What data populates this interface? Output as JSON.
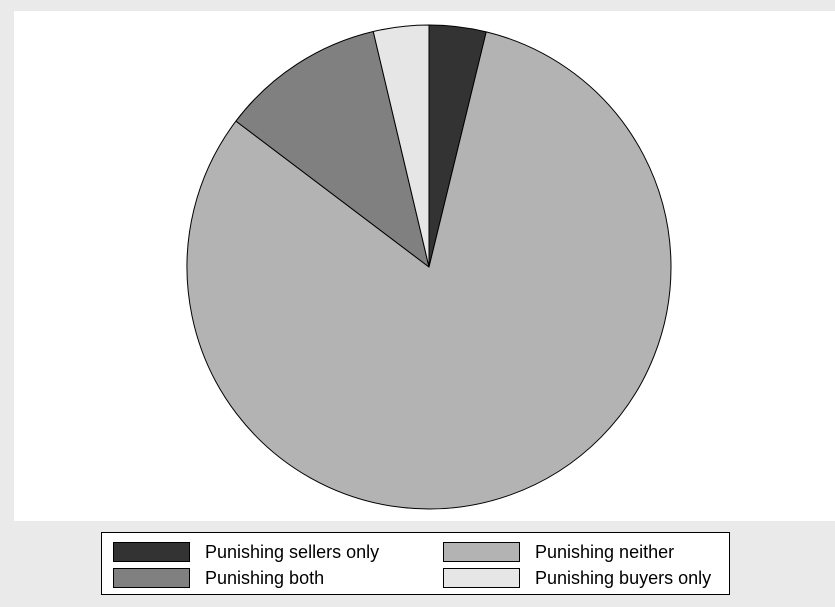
{
  "chart_data": {
    "type": "pie",
    "title": "",
    "start_angle_deg": 0,
    "direction": "clockwise",
    "slices": [
      {
        "label": "Punishing sellers only",
        "value": 3.8,
        "color": "#333333"
      },
      {
        "label": "Punishing neither",
        "value": 81.5,
        "color": "#b3b3b3"
      },
      {
        "label": "Punishing both",
        "value": 11.0,
        "color": "#808080"
      },
      {
        "label": "Punishing buyers only",
        "value": 3.7,
        "color": "#e6e6e6"
      }
    ],
    "legend": {
      "position": "bottom",
      "columns": 2,
      "entries": [
        "Punishing sellers only",
        "Punishing neither",
        "Punishing both",
        "Punishing buyers only"
      ]
    }
  }
}
